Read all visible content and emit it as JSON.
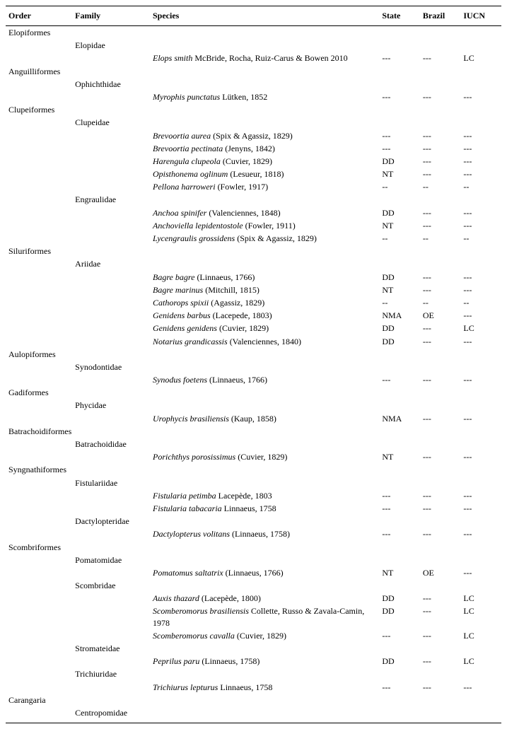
{
  "columns": {
    "order": "Order",
    "family": "Family",
    "species": "Species",
    "state": "State",
    "brazil": "Brazil",
    "iucn": "IUCN"
  },
  "rows": [
    {
      "type": "order",
      "order": "Elopiformes"
    },
    {
      "type": "family",
      "family": "Elopidae"
    },
    {
      "type": "species",
      "species_italic": "Elops smith",
      "species_rest": " McBride, Rocha, Ruiz-Carus & Bowen 2010",
      "state": "---",
      "brazil": "---",
      "iucn": "LC"
    },
    {
      "type": "order",
      "order": "Anguilliformes"
    },
    {
      "type": "family",
      "family": "Ophichthidae"
    },
    {
      "type": "species",
      "species_italic": "Myrophis punctatus",
      "species_rest": " Lütken, 1852",
      "state": "---",
      "brazil": "---",
      "iucn": "---"
    },
    {
      "type": "order",
      "order": "Clupeiformes"
    },
    {
      "type": "family",
      "family": "Clupeidae"
    },
    {
      "type": "species",
      "species_italic": "Brevoortia aurea",
      "species_rest": " (Spix & Agassiz, 1829)",
      "state": "---",
      "brazil": "---",
      "iucn": "---"
    },
    {
      "type": "species",
      "species_italic": "Brevoortia pectinata",
      "species_rest": " (Jenyns, 1842)",
      "state": "---",
      "brazil": "---",
      "iucn": "---"
    },
    {
      "type": "species",
      "species_italic": "Harengula clupeola",
      "species_rest": " (Cuvier, 1829)",
      "state": "DD",
      "brazil": "---",
      "iucn": "---"
    },
    {
      "type": "species",
      "species_italic": "Opisthonema oglinum",
      "species_rest": " (Lesueur, 1818)",
      "state": "NT",
      "brazil": "---",
      "iucn": "---"
    },
    {
      "type": "species",
      "species_italic": "Pellona harroweri",
      "species_rest": " (Fowler, 1917)",
      "state": "--",
      "brazil": "--",
      "iucn": "--"
    },
    {
      "type": "family",
      "family": "Engraulidae"
    },
    {
      "type": "species",
      "species_italic": "Anchoa spinifer",
      "species_rest": " (Valenciennes, 1848)",
      "state": "DD",
      "brazil": "---",
      "iucn": "---"
    },
    {
      "type": "species",
      "species_italic": "Anchoviella lepidentostole",
      "species_rest": " (Fowler, 1911)",
      "state": "NT",
      "brazil": "---",
      "iucn": "---"
    },
    {
      "type": "species",
      "species_italic": "Lycengraulis grossidens",
      "species_rest": " (Spix & Agassiz, 1829)",
      "state": "--",
      "brazil": "--",
      "iucn": "--"
    },
    {
      "type": "order",
      "order": "Siluriformes"
    },
    {
      "type": "family",
      "family": "Ariidae"
    },
    {
      "type": "species",
      "species_italic": "Bagre bagre",
      "species_rest": " (Linnaeus, 1766)",
      "state": "DD",
      "brazil": "---",
      "iucn": "---"
    },
    {
      "type": "species",
      "species_italic": "Bagre marinus",
      "species_rest": " (Mitchill, 1815)",
      "state": "NT",
      "brazil": "---",
      "iucn": "---"
    },
    {
      "type": "species",
      "species_italic": "Cathorops spixii",
      "species_rest": " (Agassiz, 1829)",
      "state": "--",
      "brazil": "--",
      "iucn": "--"
    },
    {
      "type": "species",
      "species_italic": "Genidens barbus",
      "species_rest": " (Lacepede, 1803)",
      "state": "NMA",
      "brazil": "OE",
      "iucn": "---"
    },
    {
      "type": "species",
      "species_italic": "Genidens genidens",
      "species_rest": " (Cuvier, 1829)",
      "state": "DD",
      "brazil": "---",
      "iucn": "LC"
    },
    {
      "type": "species",
      "species_italic": "Notarius grandicassis",
      "species_rest": " (Valenciennes, 1840)",
      "state": "DD",
      "brazil": "---",
      "iucn": "---"
    },
    {
      "type": "order",
      "order": "Aulopiformes"
    },
    {
      "type": "family",
      "family": "Synodontidae"
    },
    {
      "type": "species",
      "species_italic": "Synodus foetens",
      "species_rest": " (Linnaeus, 1766)",
      "state": "---",
      "brazil": "---",
      "iucn": "---"
    },
    {
      "type": "order",
      "order": "Gadiformes"
    },
    {
      "type": "family",
      "family": "Phycidae"
    },
    {
      "type": "species",
      "species_italic": "Urophycis brasiliensis",
      "species_rest": " (Kaup, 1858)",
      "state": "NMA",
      "brazil": "---",
      "iucn": "---"
    },
    {
      "type": "order",
      "order": "Batrachoidiformes"
    },
    {
      "type": "family",
      "family": "Batrachoididae"
    },
    {
      "type": "species",
      "species_italic": "Porichthys porosissimus",
      "species_rest": " (Cuvier, 1829)",
      "state": "NT",
      "brazil": "---",
      "iucn": "---"
    },
    {
      "type": "order",
      "order": "Syngnathiformes"
    },
    {
      "type": "family",
      "family": "Fistulariidae"
    },
    {
      "type": "species",
      "species_italic": "Fistularia petimba",
      "species_rest": " Lacepède, 1803",
      "state": "---",
      "brazil": "---",
      "iucn": "---"
    },
    {
      "type": "species",
      "species_italic": "Fistularia tabacaria",
      "species_rest": " Linnaeus, 1758",
      "state": "---",
      "brazil": "---",
      "iucn": "---"
    },
    {
      "type": "family",
      "family": "Dactylopteridae"
    },
    {
      "type": "species",
      "species_italic": "Dactylopterus volitans",
      "species_rest": " (Linnaeus, 1758)",
      "state": "---",
      "brazil": "---",
      "iucn": "---"
    },
    {
      "type": "order",
      "order": "Scombriformes"
    },
    {
      "type": "family",
      "family": "Pomatomidae"
    },
    {
      "type": "species",
      "species_italic": "Pomatomus saltatrix",
      "species_rest": " (Linnaeus, 1766)",
      "state": "NT",
      "brazil": "OE",
      "iucn": "---"
    },
    {
      "type": "family",
      "family": "Scombridae"
    },
    {
      "type": "species",
      "species_italic": "Auxis thazard",
      "species_rest": " (Lacepède, 1800)",
      "state": "DD",
      "brazil": "---",
      "iucn": "LC"
    },
    {
      "type": "species",
      "species_italic": "Scomberomorus brasiliensis",
      "species_rest": " Collette, Russo & Zavala-Camin, 1978",
      "state": "DD",
      "brazil": "---",
      "iucn": "LC"
    },
    {
      "type": "species",
      "species_italic": "Scomberomorus cavalla",
      "species_rest": " (Cuvier, 1829)",
      "state": "---",
      "brazil": "---",
      "iucn": "LC"
    },
    {
      "type": "family",
      "family": "Stromateidae"
    },
    {
      "type": "species",
      "species_italic": "Peprilus paru",
      "species_rest": " (Linnaeus, 1758)",
      "state": "DD",
      "brazil": "---",
      "iucn": "LC"
    },
    {
      "type": "family",
      "family": "Trichiuridae"
    },
    {
      "type": "species",
      "species_italic": "Trichiurus lepturus",
      "species_rest": " Linnaeus, 1758",
      "state": "---",
      "brazil": "---",
      "iucn": "---"
    },
    {
      "type": "order",
      "order": "Carangaria"
    },
    {
      "type": "family",
      "family": "Centropomidae"
    }
  ]
}
